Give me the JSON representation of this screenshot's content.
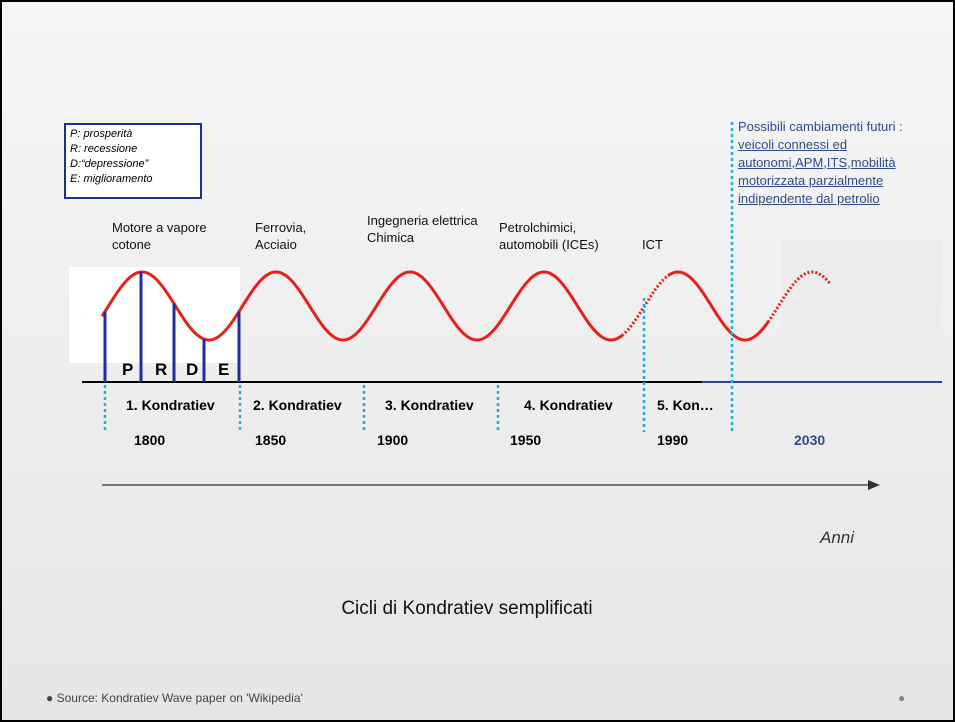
{
  "legend": [
    "P: prosperità",
    "R: recessione",
    "D:“depressione”",
    "E: miglioramento"
  ],
  "technologies": [
    [
      "Motore a vapore",
      "cotone"
    ],
    [
      "Ferrovia,",
      "Acciaio"
    ],
    [
      "Ingegneria elettrica",
      "Chimica"
    ],
    [
      "Petrolchimici,",
      "automobili (ICEs)"
    ],
    [
      "ICT"
    ]
  ],
  "phases": [
    "P",
    "R",
    "D",
    "E"
  ],
  "cycles": [
    "1. Kondratiev",
    "2. Kondratiev",
    "3. Kondratiev",
    "4. Kondratiev",
    "5. Kon…"
  ],
  "years": [
    "1800",
    "1850",
    "1900",
    "1950",
    "1990",
    "2030"
  ],
  "future": {
    "heading": "Possibili cambiamenti futuri :",
    "segments": [
      {
        "text": "veicoli connessi ed autonomi",
        "link": true
      },
      {
        "text": ",",
        "link": false
      },
      {
        "text": "APM",
        "link": true
      },
      {
        "text": ",",
        "link": false
      },
      {
        "text": "ITS",
        "link": true
      },
      {
        "text": ",",
        "link": false
      },
      {
        "text": "mobilità motorizzata parzialmente indipendente dal petrolio",
        "link": true
      }
    ]
  },
  "axis_label": "Anni",
  "caption": "Cicli di Kondratiev semplificati",
  "footer": "Source: Kondratiev Wave paper on 'Wikipedia'"
}
